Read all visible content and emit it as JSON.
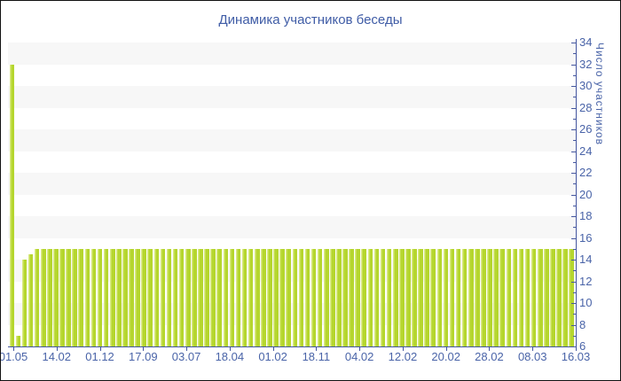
{
  "window": {
    "background": "#ffffff",
    "border_color": "#111111"
  },
  "chart_data": {
    "type": "bar",
    "title": "Динамика участников беседы",
    "ylabel": "Число участников",
    "xlabel": "",
    "x_tick_labels": [
      "01.05",
      "14.02",
      "01.12",
      "17.09",
      "03.07",
      "18.04",
      "01.02",
      "18.11",
      "04.02",
      "12.02",
      "20.02",
      "28.02",
      "08.03",
      "16.03"
    ],
    "ylim": [
      6,
      34
    ],
    "y_tick_step": 2,
    "grid": "alternating-horizontal-bands",
    "legend_position": "none",
    "values": [
      32,
      7,
      14,
      14.5,
      15,
      15,
      15,
      15,
      15,
      15,
      15,
      15,
      15,
      15,
      15,
      15,
      15,
      15,
      15,
      15,
      15,
      15,
      15,
      15,
      15,
      15,
      15,
      15,
      15,
      15,
      15,
      15,
      15,
      15,
      15,
      15,
      15,
      15,
      15,
      15,
      15,
      15,
      15,
      15,
      15,
      15,
      15,
      15,
      15,
      15,
      15,
      15,
      15,
      15,
      15,
      15,
      15,
      15,
      15,
      15,
      15,
      15,
      15,
      15,
      15,
      15,
      15,
      15,
      15,
      15,
      15,
      15,
      15,
      15,
      15,
      15,
      15,
      15,
      15,
      15,
      15,
      15,
      15,
      15,
      15,
      15,
      15,
      15,
      15,
      15
    ],
    "colors": {
      "bar": "#b5d62e",
      "bar_highlight": "#d9e983",
      "axis": "#44569f",
      "label": "#4a64a8",
      "title": "#3f5ca6",
      "band_shade": "#f7f7f7"
    }
  }
}
